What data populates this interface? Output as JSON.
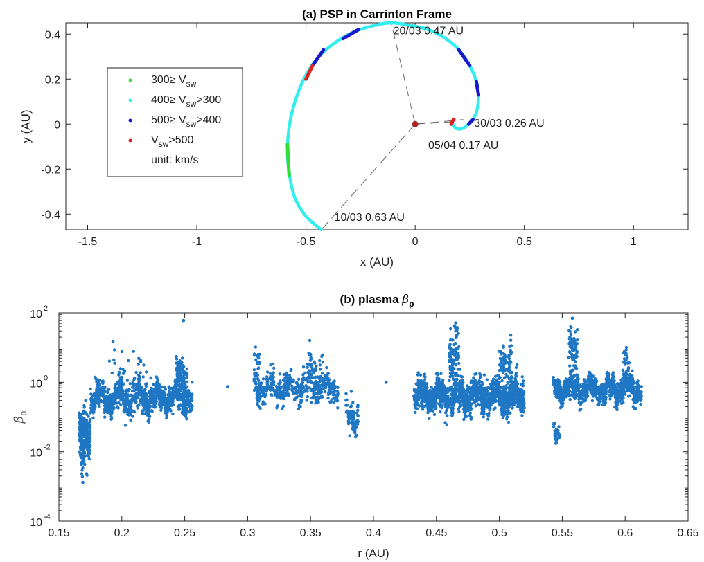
{
  "chart_data": [
    {
      "type": "scatter",
      "title": "(a) PSP in Carrinton Frame",
      "xlabel": "x (AU)",
      "ylabel": "y (AU)",
      "xlim": [
        -1.6,
        1.25
      ],
      "ylim": [
        -0.47,
        0.45
      ],
      "x_ticks": [
        -1.5,
        -1,
        -0.5,
        0,
        0.5,
        1
      ],
      "x_tick_labels": [
        "-1.5",
        "-1",
        "-0.5",
        "0",
        "0.5",
        "1"
      ],
      "y_ticks": [
        -0.4,
        -0.2,
        0,
        0.2,
        0.4
      ],
      "y_tick_labels": [
        "-0.4",
        "-0.2",
        "0",
        "0.2",
        "0.4"
      ],
      "grid": false,
      "legend_position": "left",
      "legend": [
        {
          "label_main": "300≥ V",
          "label_sub": "sw",
          "label_tail": "",
          "color": "#33dd33"
        },
        {
          "label_main": "400≥ V",
          "label_sub": "sw",
          "label_tail": ">300",
          "color": "#33eeee"
        },
        {
          "label_main": "500≥ V",
          "label_sub": "sw",
          "label_tail": ">400",
          "color": "#1a1acc"
        },
        {
          "label_main": "V",
          "label_sub": "sw",
          "label_tail": ">500",
          "color": "#dd2222"
        },
        {
          "label_main": "unit: km/s",
          "label_sub": "",
          "label_tail": "",
          "color": ""
        }
      ],
      "orbit_path": [
        [
          -0.43,
          -0.47
        ],
        [
          -0.5,
          -0.41
        ],
        [
          -0.55,
          -0.33
        ],
        [
          -0.575,
          -0.23
        ],
        [
          -0.585,
          -0.12
        ],
        [
          -0.575,
          0.0
        ],
        [
          -0.55,
          0.1
        ],
        [
          -0.51,
          0.2
        ],
        [
          -0.45,
          0.29
        ],
        [
          -0.37,
          0.36
        ],
        [
          -0.28,
          0.41
        ],
        [
          -0.18,
          0.44
        ],
        [
          -0.11,
          0.45
        ],
        [
          -0.03,
          0.44
        ],
        [
          0.06,
          0.42
        ],
        [
          0.14,
          0.38
        ],
        [
          0.2,
          0.33
        ],
        [
          0.25,
          0.26
        ],
        [
          0.28,
          0.19
        ],
        [
          0.29,
          0.13
        ],
        [
          0.285,
          0.07
        ],
        [
          0.27,
          0.03
        ],
        [
          0.245,
          0.0
        ],
        [
          0.215,
          -0.02
        ],
        [
          0.19,
          -0.02
        ],
        [
          0.175,
          -0.005
        ],
        [
          0.17,
          0.01
        ],
        [
          0.18,
          0.02
        ]
      ],
      "colored_segments": [
        {
          "color": "#1a1acc",
          "from": [
            -0.33,
            0.38
          ],
          "to": [
            -0.26,
            0.42
          ]
        },
        {
          "color": "#1a1acc",
          "from": [
            -0.47,
            0.26
          ],
          "to": [
            -0.42,
            0.33
          ]
        },
        {
          "color": "#dd2222",
          "from": [
            -0.5,
            0.2
          ],
          "to": [
            -0.47,
            0.26
          ]
        },
        {
          "color": "#1a1acc",
          "from": [
            0.2,
            0.33
          ],
          "to": [
            0.25,
            0.26
          ]
        },
        {
          "color": "#1a1acc",
          "from": [
            0.28,
            0.19
          ],
          "to": [
            0.29,
            0.13
          ]
        },
        {
          "color": "#1a1acc",
          "from": [
            0.245,
            0.0
          ],
          "to": [
            0.265,
            0.02
          ]
        },
        {
          "color": "#33dd33",
          "from": [
            -0.585,
            -0.09
          ],
          "to": [
            -0.577,
            -0.23
          ]
        },
        {
          "color": "#dd2222",
          "from": [
            0.165,
            0.0
          ],
          "to": [
            0.175,
            0.02
          ]
        }
      ],
      "sun": {
        "x": 0,
        "y": 0,
        "color": "#aa2222"
      },
      "radial_lines": [
        {
          "to": [
            -0.11,
            0.45
          ]
        },
        {
          "to": [
            -0.43,
            -0.47
          ]
        },
        {
          "to": [
            0.22,
            0.02
          ]
        },
        {
          "to": [
            0.17,
            0.01
          ]
        }
      ],
      "annotations": [
        {
          "text": "20/03 0.47 AU",
          "x": -0.1,
          "y": 0.4
        },
        {
          "text": "30/03 0.26 AU",
          "x": 0.27,
          "y": -0.012
        },
        {
          "text": "05/04 0.17 AU",
          "x": 0.06,
          "y": -0.11
        },
        {
          "text": "10/03 0.63 AU",
          "x": -0.37,
          "y": -0.43
        }
      ]
    },
    {
      "type": "scatter",
      "title": "(b) plasma ",
      "title_symbol": "β",
      "title_sub": "p",
      "xlabel": "r (AU)",
      "ylabel": "β",
      "ylabel_sub": "p",
      "xlim": [
        0.15,
        0.65
      ],
      "ylim": [
        0.0001,
        100
      ],
      "y_scale": "log",
      "x_ticks": [
        0.15,
        0.2,
        0.25,
        0.3,
        0.35,
        0.4,
        0.45,
        0.5,
        0.55,
        0.6,
        0.65
      ],
      "x_tick_labels": [
        "0.15",
        "0.2",
        "0.25",
        "0.3",
        "0.35",
        "0.4",
        "0.45",
        "0.5",
        "0.55",
        "0.6",
        "0.65"
      ],
      "y_ticks": [
        0.0001,
        0.01,
        1,
        100
      ],
      "y_tick_labels": [
        {
          "base": "10",
          "exp": "-4"
        },
        {
          "base": "10",
          "exp": "-2"
        },
        {
          "base": "10",
          "exp": "0"
        },
        {
          "base": "10",
          "exp": "2"
        }
      ],
      "grid": false,
      "point_color": "#1f77c4",
      "clusters": [
        {
          "x_range": [
            0.166,
            0.175
          ],
          "y_center_log": -1.45,
          "y_spread_log": 0.45,
          "count": 260
        },
        {
          "x_range": [
            0.167,
            0.171
          ],
          "y_center_log": -2.2,
          "y_spread_log": 0.45,
          "count": 50
        },
        {
          "x_range": [
            0.175,
            0.256
          ],
          "y_center_log": -0.45,
          "y_spread_log": 0.3,
          "count": 1100
        },
        {
          "x_range": [
            0.19,
            0.22
          ],
          "y_center_log": 0.3,
          "y_spread_log": 0.5,
          "count": 35
        },
        {
          "x_range": [
            0.243,
            0.252
          ],
          "y_center_log": 0.2,
          "y_spread_log": 0.35,
          "count": 120
        },
        {
          "x_range": [
            0.305,
            0.372
          ],
          "y_center_log": -0.15,
          "y_spread_log": 0.3,
          "count": 500
        },
        {
          "x_range": [
            0.305,
            0.31
          ],
          "y_center_log": 0.7,
          "y_spread_log": 0.35,
          "count": 20
        },
        {
          "x_range": [
            0.347,
            0.36
          ],
          "y_center_log": 0.5,
          "y_spread_log": 0.35,
          "count": 40
        },
        {
          "x_range": [
            0.378,
            0.388
          ],
          "y_center_log": -0.95,
          "y_spread_log": 0.3,
          "count": 80
        },
        {
          "x_range": [
            0.432,
            0.52
          ],
          "y_center_log": -0.4,
          "y_spread_log": 0.35,
          "count": 1500
        },
        {
          "x_range": [
            0.46,
            0.468
          ],
          "y_center_log": 0.7,
          "y_spread_log": 0.65,
          "count": 90
        },
        {
          "x_range": [
            0.5,
            0.51
          ],
          "y_center_log": 0.5,
          "y_spread_log": 0.5,
          "count": 80
        },
        {
          "x_range": [
            0.543,
            0.548
          ],
          "y_center_log": -1.5,
          "y_spread_log": 0.2,
          "count": 40
        },
        {
          "x_range": [
            0.543,
            0.613
          ],
          "y_center_log": -0.2,
          "y_spread_log": 0.25,
          "count": 1100
        },
        {
          "x_range": [
            0.555,
            0.562
          ],
          "y_center_log": 0.8,
          "y_spread_log": 0.5,
          "count": 80
        },
        {
          "x_range": [
            0.598,
            0.604
          ],
          "y_center_log": 0.4,
          "y_spread_log": 0.4,
          "count": 40
        }
      ],
      "isolated_points": [
        {
          "x": 0.284,
          "y": 0.75
        },
        {
          "x": 0.41,
          "y": 1.0
        },
        {
          "x": 0.249,
          "y": 60
        },
        {
          "x": 0.465,
          "y": 38
        },
        {
          "x": 0.558,
          "y": 70
        },
        {
          "x": 0.193,
          "y": 15
        },
        {
          "x": 0.169,
          "y": 0.0013
        }
      ]
    }
  ]
}
